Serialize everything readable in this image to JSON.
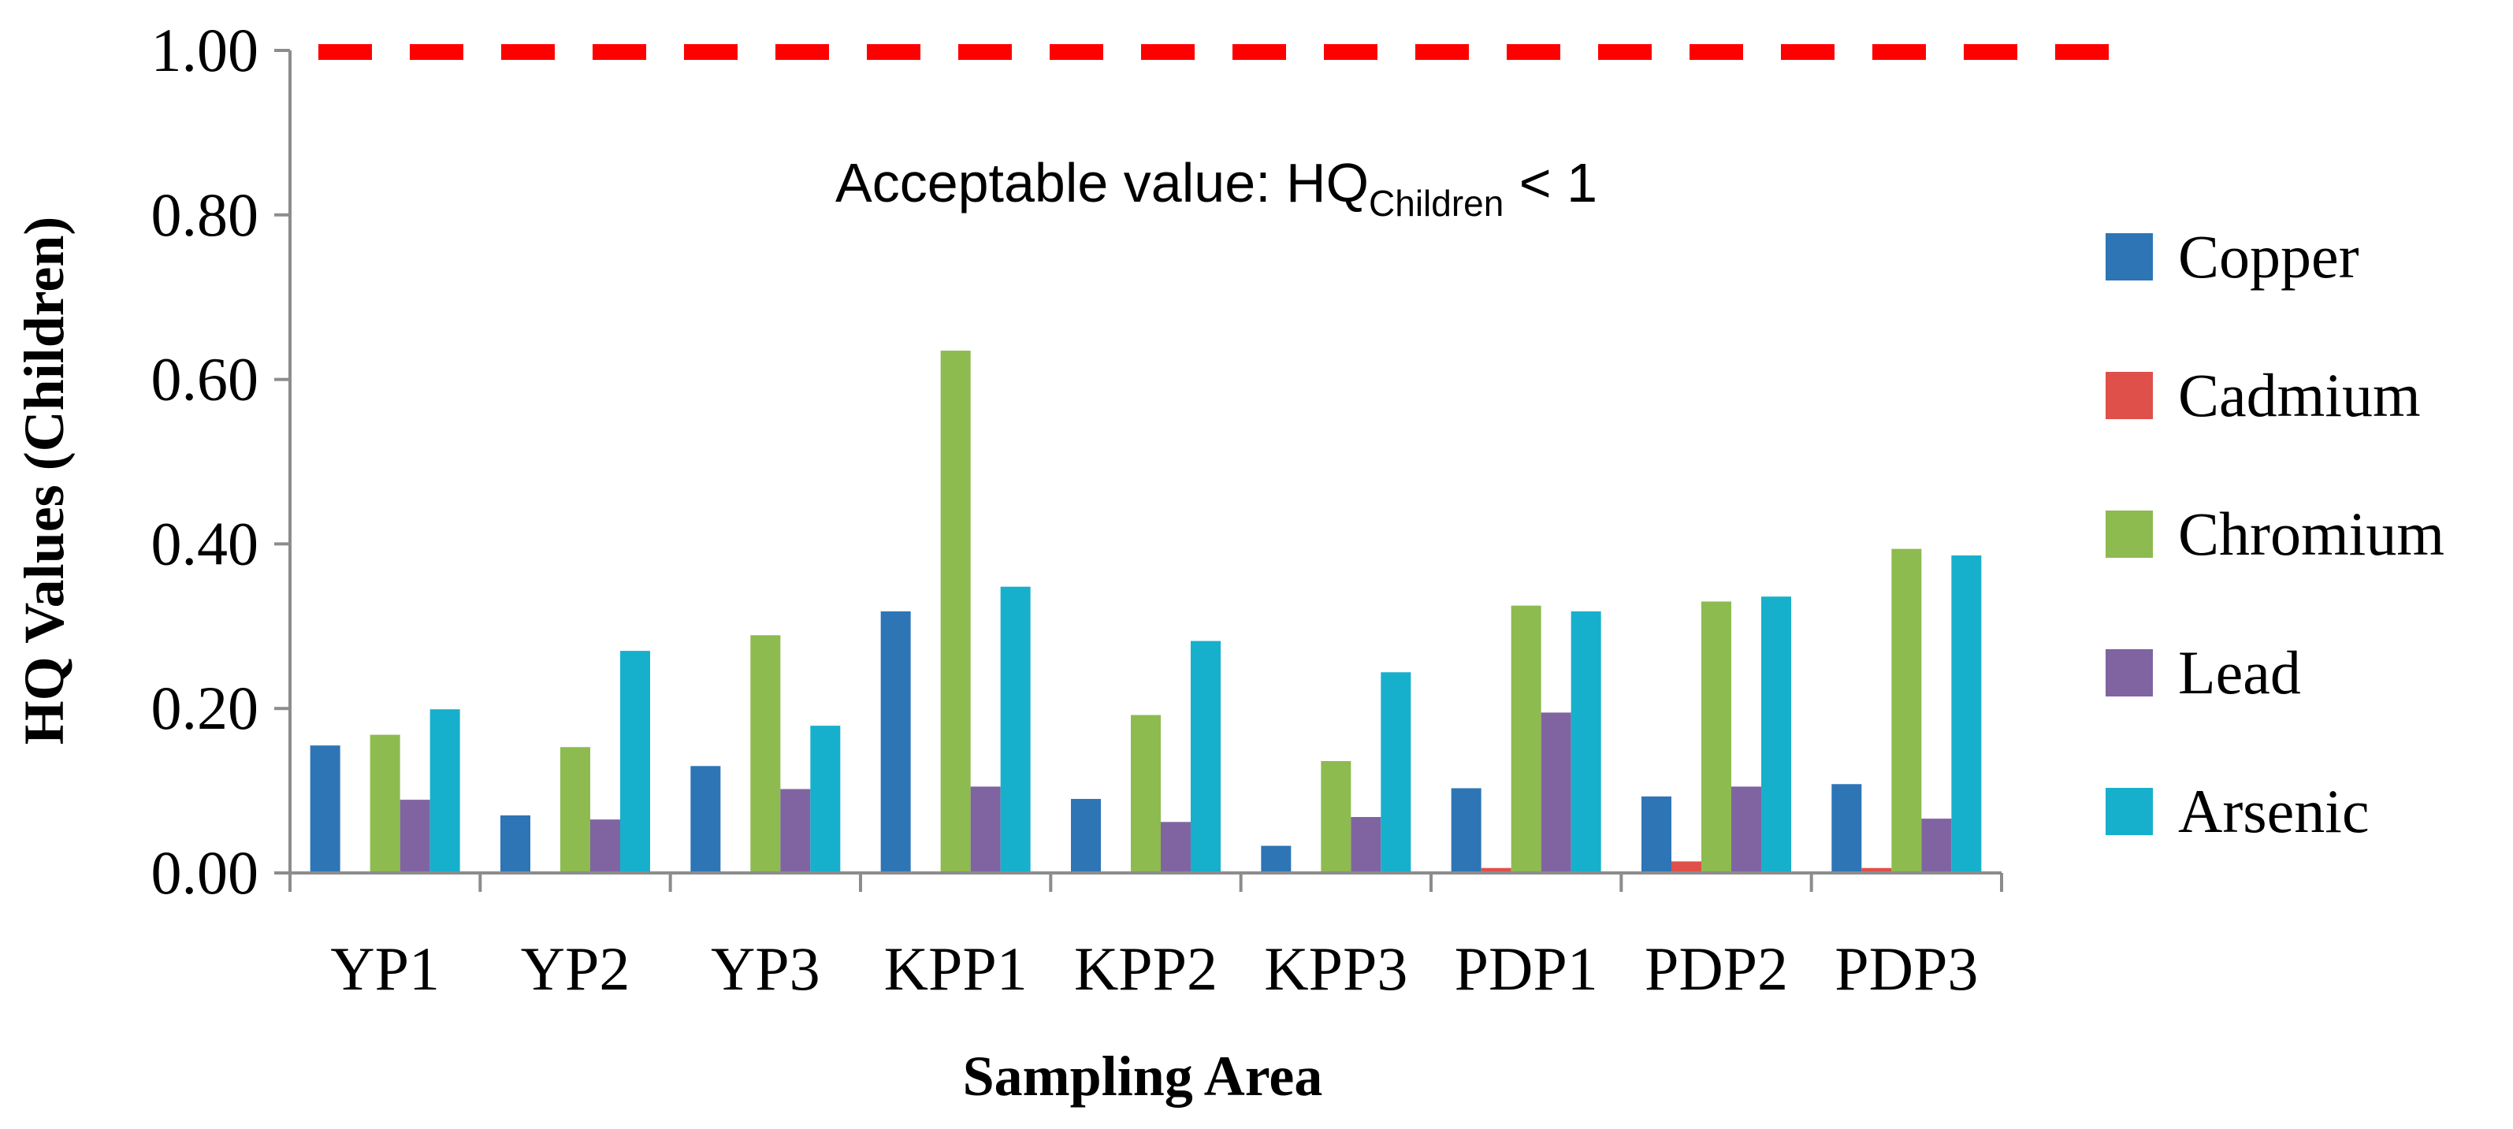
{
  "chart_data": {
    "type": "bar",
    "title": "",
    "xlabel": "Sampling Area",
    "ylabel": "HQ Values (Children)",
    "ylim": [
      0,
      1
    ],
    "yticks": [
      "0.00",
      "0.20",
      "0.40",
      "0.60",
      "0.80",
      "1.00"
    ],
    "grid": false,
    "legend_position": "right",
    "categories": [
      "YP1",
      "YP2",
      "YP3",
      "KPP1",
      "KPP2",
      "KPP3",
      "PDP1",
      "PDP2",
      "PDP3"
    ],
    "series": [
      {
        "name": "Copper",
        "color": "#2E75B6",
        "values": [
          0.155,
          0.07,
          0.13,
          0.318,
          0.09,
          0.033,
          0.103,
          0.093,
          0.108
        ]
      },
      {
        "name": "Cadmium",
        "color": "#E0504A",
        "values": [
          0.0,
          0.0,
          0.0,
          0.0,
          0.0,
          0.0,
          0.006,
          0.014,
          0.006
        ]
      },
      {
        "name": "Chromium",
        "color": "#8DBB4F",
        "values": [
          0.168,
          0.153,
          0.289,
          0.635,
          0.192,
          0.136,
          0.325,
          0.33,
          0.394
        ]
      },
      {
        "name": "Lead",
        "color": "#8064A2",
        "values": [
          0.089,
          0.065,
          0.102,
          0.105,
          0.062,
          0.068,
          0.195,
          0.105,
          0.066
        ]
      },
      {
        "name": "Arsenic",
        "color": "#17B0CC",
        "values": [
          0.199,
          0.27,
          0.179,
          0.348,
          0.282,
          0.244,
          0.318,
          0.336,
          0.386
        ]
      }
    ],
    "reference_line": {
      "value": 1.0,
      "color": "#FF0000",
      "style": "dashed"
    },
    "annotation": {
      "prefix": "Acceptable value: HQ",
      "subscript": "Children",
      "suffix": " < 1"
    }
  }
}
